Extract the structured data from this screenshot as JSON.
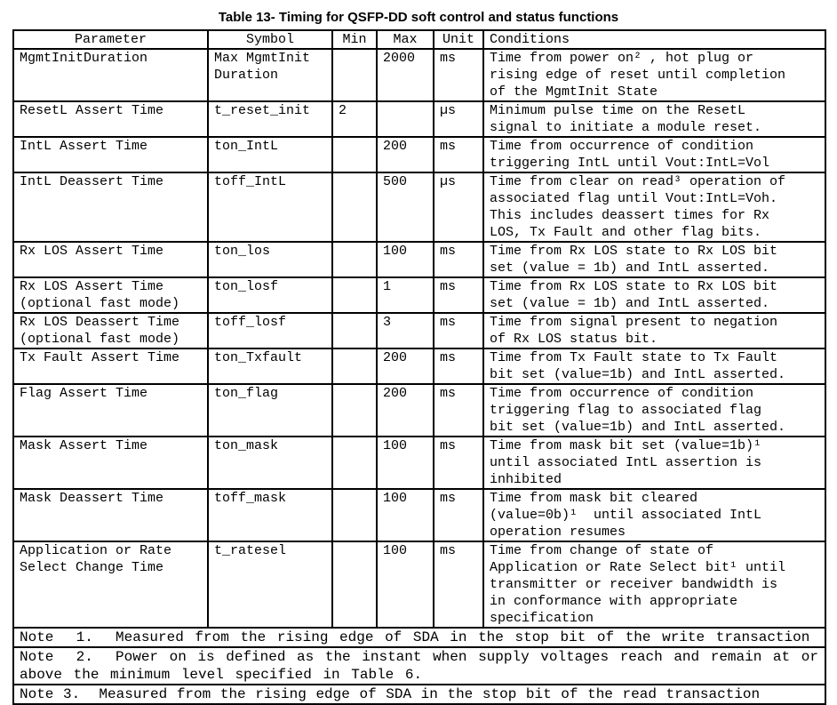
{
  "title": "Table 13- Timing for QSFP-DD soft control and status functions",
  "table": {
    "headers": {
      "parameter": "Parameter",
      "symbol": "Symbol",
      "min": "Min",
      "max": "Max",
      "unit": "Unit",
      "conditions": "Conditions"
    },
    "rows": [
      {
        "parameter": "MgmtInitDuration",
        "symbol": "Max MgmtInit\nDuration",
        "min": "",
        "max": "2000",
        "unit": "ms",
        "conditions": "Time from power on² , hot plug or\nrising edge of reset until completion\nof the MgmtInit State"
      },
      {
        "parameter": "ResetL Assert Time",
        "symbol": "t_reset_init",
        "min": "2",
        "max": "",
        "unit": "µs",
        "conditions": "Minimum pulse time on the ResetL\nsignal to initiate a module reset."
      },
      {
        "parameter": "IntL Assert Time",
        "symbol": "ton_IntL",
        "min": "",
        "max": "200",
        "unit": "ms",
        "conditions": "Time from occurrence of condition\ntriggering IntL until Vout:IntL=Vol"
      },
      {
        "parameter": "IntL Deassert Time",
        "symbol": "toff_IntL",
        "min": "",
        "max": "500",
        "unit": "µs",
        "conditions": "Time from clear on read³ operation of\nassociated flag until Vout:IntL=Voh.\nThis includes deassert times for Rx\nLOS, Tx Fault and other flag bits."
      },
      {
        "parameter": "Rx LOS Assert Time",
        "symbol": "ton_los",
        "min": "",
        "max": "100",
        "unit": "ms",
        "conditions": "Time from Rx LOS state to Rx LOS bit\nset (value = 1b) and IntL asserted."
      },
      {
        "parameter": "Rx LOS Assert Time\n(optional fast mode)",
        "symbol": "ton_losf",
        "min": "",
        "max": "1",
        "unit": "ms",
        "conditions": "Time from Rx LOS state to Rx LOS bit\nset (value = 1b) and IntL asserted."
      },
      {
        "parameter": "Rx LOS Deassert Time\n(optional fast mode)",
        "symbol": "toff_losf",
        "min": "",
        "max": "3",
        "unit": "ms",
        "conditions": "Time from signal present to negation\nof Rx LOS status bit."
      },
      {
        "parameter": "Tx Fault Assert Time",
        "symbol": "ton_Txfault",
        "min": "",
        "max": "200",
        "unit": "ms",
        "conditions": "Time from Tx Fault state to Tx Fault\nbit set (value=1b) and IntL asserted."
      },
      {
        "parameter": "Flag Assert Time",
        "symbol": "ton_flag",
        "min": "",
        "max": "200",
        "unit": "ms",
        "conditions": "Time from occurrence of condition\ntriggering flag to associated flag\nbit set (value=1b) and IntL asserted."
      },
      {
        "parameter": "Mask Assert Time",
        "symbol": "ton_mask",
        "min": "",
        "max": "100",
        "unit": "ms",
        "conditions": "Time from mask bit set (value=1b)¹\nuntil associated IntL assertion is\ninhibited"
      },
      {
        "parameter": "Mask Deassert Time",
        "symbol": "toff_mask",
        "min": "",
        "max": "100",
        "unit": "ms",
        "conditions": "Time from mask bit cleared\n(value=0b)¹  until associated IntL\noperation resumes"
      },
      {
        "parameter": "Application or Rate\nSelect Change Time",
        "symbol": "t_ratesel",
        "min": "",
        "max": "100",
        "unit": "ms",
        "conditions": "Time from change of state of\nApplication or Rate Select bit¹ until\ntransmitter or receiver bandwidth is\nin conformance with appropriate\nspecification"
      }
    ],
    "notes": [
      "Note  1.  Measured from the rising edge of SDA in the stop bit of the write transaction",
      "Note  2.  Power on is defined as the instant when supply voltages reach and remain at or\nabove the minimum level specified in Table 6.",
      "Note 3.  Measured from the rising edge of SDA in the stop bit of the read transaction"
    ]
  }
}
